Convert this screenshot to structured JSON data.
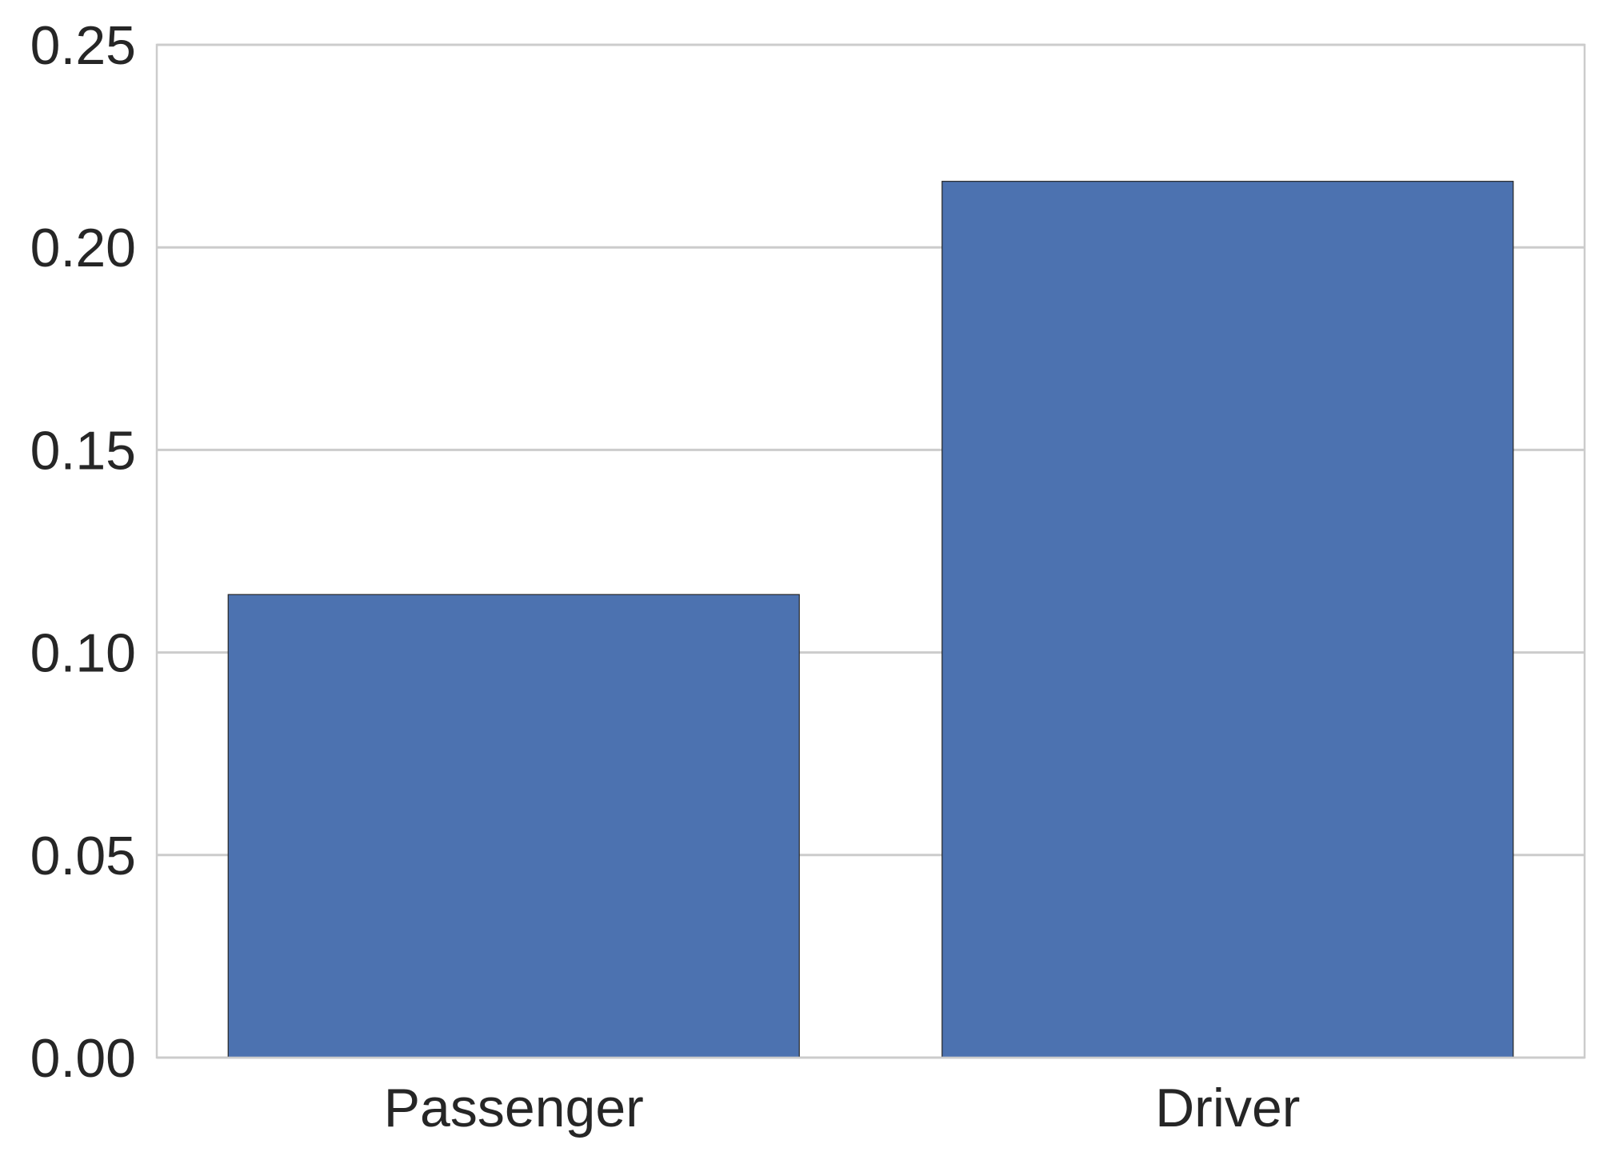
{
  "chart_data": {
    "type": "bar",
    "title": "",
    "xlabel": "",
    "ylabel": "",
    "categories": [
      "Passenger",
      "Driver"
    ],
    "values": [
      0.1143,
      0.2163
    ],
    "ylim": [
      0,
      0.25
    ],
    "yticks": [
      "0.00",
      "0.05",
      "0.10",
      "0.15",
      "0.20",
      "0.25"
    ],
    "grid": "horizontal",
    "legend": "none",
    "bar_color": "#4C72B0",
    "bar_edge_color": "#262626",
    "grid_color": "#CCCCCC",
    "text_color": "#262626"
  }
}
